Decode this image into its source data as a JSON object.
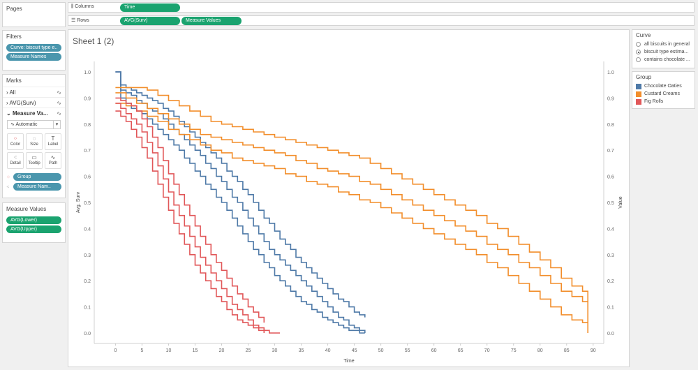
{
  "pages": {
    "title": "Pages"
  },
  "filters": {
    "title": "Filters",
    "items": [
      "Curve: biscuit type e..",
      "Measure Names"
    ]
  },
  "marks": {
    "title": "Marks",
    "rows": [
      "All",
      "AVG(Surv)",
      "Measure Va..."
    ],
    "mark_type": "Automatic",
    "buttons": [
      "Color",
      "Size",
      "Label",
      "Detail",
      "Tooltip",
      "Path"
    ],
    "pills": [
      "Group",
      "Measure Nam.."
    ]
  },
  "measure_values": {
    "title": "Measure Values",
    "items": [
      "AVG(Lower)",
      "AVG(Upper)"
    ]
  },
  "columns_shelf": {
    "label": "Columns",
    "pill": "Time"
  },
  "rows_shelf": {
    "label": "Rows",
    "pills": [
      "AVG(Surv)",
      "Measure Values"
    ]
  },
  "sheet_title": "Sheet 1 (2)",
  "curve_filter": {
    "title": "Curve",
    "options": [
      "all biscuits in general",
      "biscuit type estima...",
      "contains chocolate ..."
    ],
    "selected": 1
  },
  "legend": {
    "title": "Group",
    "items": [
      {
        "name": "Chocolate Oaties",
        "color": "#4e79a7"
      },
      {
        "name": "Custard Creams",
        "color": "#f28e2b"
      },
      {
        "name": "Fig Rolls",
        "color": "#e15759"
      }
    ]
  },
  "chart_data": {
    "type": "line",
    "xlabel": "Time",
    "ylabel": "Avg. Surv",
    "y2label": "Value",
    "xlim": [
      -4,
      92
    ],
    "ylim": [
      -0.04,
      1.04
    ],
    "xticks": [
      0,
      5,
      10,
      15,
      20,
      25,
      30,
      35,
      40,
      45,
      50,
      55,
      60,
      65,
      70,
      75,
      80,
      85,
      90
    ],
    "yticks": [
      0.0,
      0.1,
      0.2,
      0.3,
      0.4,
      0.5,
      0.6,
      0.7,
      0.8,
      0.9,
      1.0
    ],
    "grid": false,
    "series": [
      {
        "name": "Chocolate Oaties",
        "measure": "AVG(Surv)",
        "color": "#4e79a7",
        "x": [
          0,
          1,
          2,
          3,
          4,
          5,
          6,
          7,
          8,
          9,
          10,
          11,
          12,
          13,
          14,
          15,
          16,
          17,
          18,
          19,
          20,
          21,
          22,
          23,
          24,
          25,
          26,
          27,
          28,
          29,
          30,
          31,
          32,
          33,
          34,
          35,
          36,
          37,
          38,
          39,
          40,
          41,
          42,
          43,
          44,
          45,
          46,
          47
        ],
        "y": [
          1.0,
          0.93,
          0.92,
          0.91,
          0.89,
          0.88,
          0.86,
          0.85,
          0.84,
          0.82,
          0.8,
          0.78,
          0.76,
          0.74,
          0.72,
          0.7,
          0.68,
          0.65,
          0.63,
          0.6,
          0.58,
          0.55,
          0.52,
          0.5,
          0.47,
          0.44,
          0.41,
          0.38,
          0.35,
          0.32,
          0.3,
          0.28,
          0.26,
          0.24,
          0.22,
          0.2,
          0.18,
          0.16,
          0.14,
          0.12,
          0.1,
          0.08,
          0.06,
          0.05,
          0.03,
          0.02,
          0.01,
          0.0
        ]
      },
      {
        "name": "Chocolate Oaties",
        "measure": "AVG(Upper)",
        "color": "#4e79a7",
        "x": [
          0,
          1,
          2,
          3,
          4,
          5,
          6,
          7,
          8,
          9,
          10,
          11,
          12,
          13,
          14,
          15,
          16,
          17,
          18,
          19,
          20,
          21,
          22,
          23,
          24,
          25,
          26,
          27,
          28,
          29,
          30,
          31,
          32,
          33,
          34,
          35,
          36,
          37,
          38,
          39,
          40,
          41,
          42,
          43,
          44,
          45,
          46,
          47
        ],
        "y": [
          1.0,
          0.95,
          0.94,
          0.93,
          0.92,
          0.91,
          0.9,
          0.89,
          0.88,
          0.86,
          0.85,
          0.83,
          0.81,
          0.79,
          0.77,
          0.75,
          0.73,
          0.71,
          0.69,
          0.67,
          0.65,
          0.62,
          0.6,
          0.58,
          0.55,
          0.53,
          0.5,
          0.47,
          0.44,
          0.42,
          0.39,
          0.36,
          0.34,
          0.32,
          0.29,
          0.27,
          0.25,
          0.23,
          0.21,
          0.19,
          0.17,
          0.15,
          0.13,
          0.12,
          0.1,
          0.08,
          0.07,
          0.06
        ]
      },
      {
        "name": "Chocolate Oaties",
        "measure": "AVG(Lower)",
        "color": "#4e79a7",
        "x": [
          0,
          1,
          2,
          3,
          4,
          5,
          6,
          7,
          8,
          9,
          10,
          11,
          12,
          13,
          14,
          15,
          16,
          17,
          18,
          19,
          20,
          21,
          22,
          23,
          24,
          25,
          26,
          27,
          28,
          29,
          30,
          31,
          32,
          33,
          34,
          35,
          36,
          37,
          38,
          39,
          40,
          41,
          42,
          43,
          44,
          45,
          46,
          47
        ],
        "y": [
          1.0,
          0.9,
          0.88,
          0.86,
          0.85,
          0.84,
          0.82,
          0.8,
          0.78,
          0.76,
          0.74,
          0.72,
          0.7,
          0.67,
          0.65,
          0.62,
          0.6,
          0.57,
          0.55,
          0.52,
          0.5,
          0.47,
          0.44,
          0.41,
          0.38,
          0.35,
          0.32,
          0.3,
          0.27,
          0.25,
          0.22,
          0.2,
          0.18,
          0.16,
          0.14,
          0.12,
          0.11,
          0.09,
          0.08,
          0.06,
          0.05,
          0.04,
          0.03,
          0.02,
          0.01,
          0.01,
          0.0,
          0.0
        ]
      },
      {
        "name": "Custard Creams",
        "measure": "AVG(Surv)",
        "color": "#f28e2b",
        "x": [
          0,
          2,
          4,
          6,
          8,
          10,
          12,
          14,
          16,
          18,
          20,
          22,
          24,
          26,
          28,
          30,
          32,
          34,
          36,
          38,
          40,
          42,
          44,
          46,
          48,
          50,
          52,
          54,
          56,
          58,
          60,
          62,
          64,
          66,
          68,
          70,
          72,
          74,
          76,
          78,
          80,
          82,
          84,
          86,
          88,
          89
        ],
        "y": [
          0.92,
          0.9,
          0.88,
          0.86,
          0.84,
          0.82,
          0.8,
          0.78,
          0.76,
          0.75,
          0.74,
          0.73,
          0.72,
          0.71,
          0.7,
          0.69,
          0.68,
          0.66,
          0.65,
          0.63,
          0.62,
          0.61,
          0.6,
          0.58,
          0.57,
          0.55,
          0.53,
          0.51,
          0.49,
          0.47,
          0.45,
          0.43,
          0.41,
          0.39,
          0.37,
          0.34,
          0.32,
          0.3,
          0.27,
          0.25,
          0.22,
          0.19,
          0.16,
          0.14,
          0.12,
          0.04
        ]
      },
      {
        "name": "Custard Creams",
        "measure": "AVG(Upper)",
        "color": "#f28e2b",
        "x": [
          0,
          2,
          4,
          6,
          8,
          10,
          12,
          14,
          16,
          18,
          20,
          22,
          24,
          26,
          28,
          30,
          32,
          34,
          36,
          38,
          40,
          42,
          44,
          46,
          48,
          50,
          52,
          54,
          56,
          58,
          60,
          62,
          64,
          66,
          68,
          70,
          72,
          74,
          76,
          78,
          80,
          82,
          84,
          86,
          88,
          89
        ],
        "y": [
          0.94,
          0.94,
          0.94,
          0.93,
          0.91,
          0.89,
          0.87,
          0.85,
          0.83,
          0.81,
          0.8,
          0.79,
          0.78,
          0.77,
          0.76,
          0.75,
          0.74,
          0.73,
          0.72,
          0.71,
          0.7,
          0.69,
          0.68,
          0.67,
          0.65,
          0.63,
          0.61,
          0.59,
          0.57,
          0.55,
          0.53,
          0.51,
          0.49,
          0.47,
          0.45,
          0.42,
          0.4,
          0.37,
          0.34,
          0.31,
          0.28,
          0.25,
          0.21,
          0.18,
          0.16,
          0.12
        ]
      },
      {
        "name": "Custard Creams",
        "measure": "AVG(Lower)",
        "color": "#f28e2b",
        "x": [
          0,
          2,
          4,
          6,
          8,
          10,
          12,
          14,
          16,
          18,
          20,
          22,
          24,
          26,
          28,
          30,
          32,
          34,
          36,
          38,
          40,
          42,
          44,
          46,
          48,
          50,
          52,
          54,
          56,
          58,
          60,
          62,
          64,
          66,
          68,
          70,
          72,
          74,
          76,
          78,
          80,
          82,
          84,
          86,
          88,
          89
        ],
        "y": [
          0.88,
          0.87,
          0.85,
          0.83,
          0.81,
          0.78,
          0.76,
          0.74,
          0.72,
          0.7,
          0.69,
          0.67,
          0.66,
          0.65,
          0.64,
          0.63,
          0.61,
          0.6,
          0.58,
          0.57,
          0.56,
          0.54,
          0.53,
          0.51,
          0.5,
          0.48,
          0.46,
          0.44,
          0.42,
          0.4,
          0.38,
          0.36,
          0.34,
          0.32,
          0.3,
          0.27,
          0.25,
          0.22,
          0.19,
          0.16,
          0.13,
          0.1,
          0.07,
          0.05,
          0.04,
          0.0
        ]
      },
      {
        "name": "Fig Rolls",
        "measure": "AVG(Surv)",
        "color": "#e15759",
        "x": [
          0,
          1,
          2,
          3,
          4,
          5,
          6,
          7,
          8,
          9,
          10,
          11,
          12,
          13,
          14,
          15,
          16,
          17,
          18,
          19,
          20,
          21,
          22,
          23,
          24,
          25,
          26,
          27,
          28
        ],
        "y": [
          0.88,
          0.86,
          0.84,
          0.82,
          0.8,
          0.77,
          0.73,
          0.69,
          0.64,
          0.59,
          0.54,
          0.49,
          0.45,
          0.41,
          0.37,
          0.33,
          0.29,
          0.26,
          0.23,
          0.2,
          0.17,
          0.14,
          0.11,
          0.09,
          0.07,
          0.05,
          0.03,
          0.02,
          0.0
        ]
      },
      {
        "name": "Fig Rolls",
        "measure": "AVG(Upper)",
        "color": "#e15759",
        "x": [
          0,
          1,
          2,
          3,
          4,
          5,
          6,
          7,
          8,
          9,
          10,
          11,
          12,
          13,
          14,
          15,
          16,
          17,
          18,
          19,
          20,
          21,
          22,
          23,
          24,
          25,
          26,
          27,
          28
        ],
        "y": [
          0.9,
          0.89,
          0.88,
          0.87,
          0.85,
          0.82,
          0.79,
          0.75,
          0.71,
          0.66,
          0.61,
          0.57,
          0.53,
          0.49,
          0.45,
          0.41,
          0.37,
          0.34,
          0.3,
          0.27,
          0.24,
          0.21,
          0.18,
          0.15,
          0.13,
          0.1,
          0.08,
          0.06,
          0.04
        ]
      },
      {
        "name": "Fig Rolls",
        "measure": "AVG(Lower)",
        "color": "#e15759",
        "x": [
          0,
          1,
          2,
          3,
          4,
          5,
          6,
          7,
          8,
          9,
          10,
          11,
          12,
          13,
          14,
          15,
          16,
          17,
          18,
          19,
          20,
          21,
          22,
          23,
          24,
          25,
          26,
          27,
          28,
          29,
          30,
          31
        ],
        "y": [
          0.85,
          0.83,
          0.81,
          0.78,
          0.75,
          0.71,
          0.67,
          0.62,
          0.57,
          0.52,
          0.47,
          0.42,
          0.38,
          0.34,
          0.3,
          0.26,
          0.23,
          0.2,
          0.17,
          0.14,
          0.12,
          0.09,
          0.07,
          0.05,
          0.04,
          0.03,
          0.02,
          0.01,
          0.01,
          0.0,
          0.0,
          0.0
        ]
      }
    ]
  }
}
